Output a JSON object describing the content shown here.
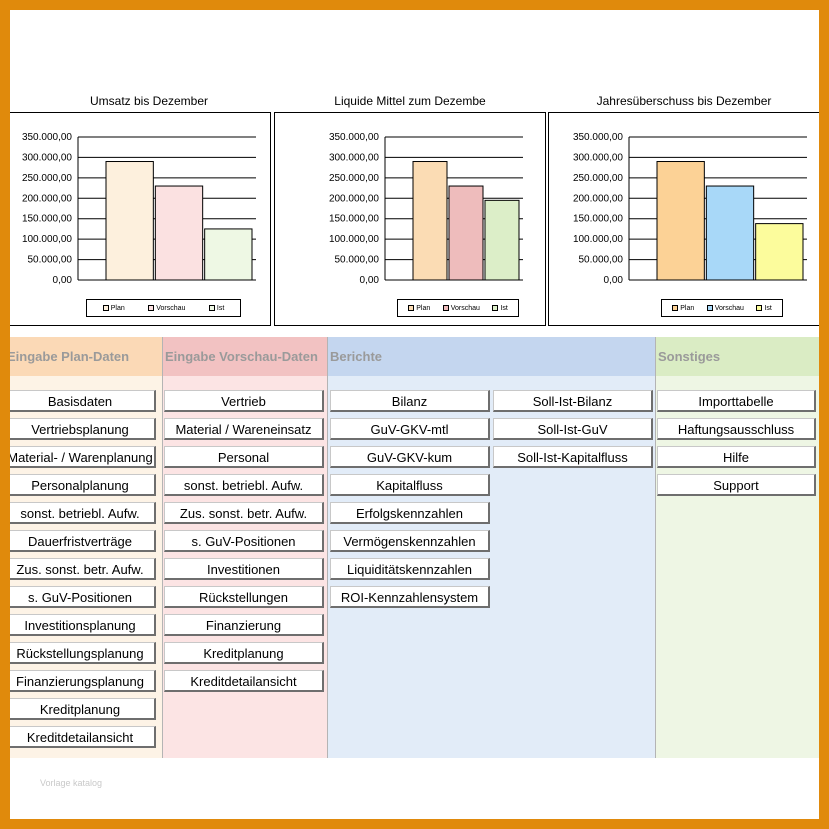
{
  "colors": {
    "plan_dashboard": "#fdf0dd",
    "vorschau_dashboard": "#fbe1e1",
    "ist_dashboard": "#eef8e4",
    "plan_liquid": "#fbdcb4",
    "vorschau_liquid": "#eebcbc",
    "ist_liquid": "#dceec8",
    "plan_jahr": "#fcd296",
    "vorschau_jahr": "#a8d8f8",
    "ist_jahr": "#fcfc9c",
    "section_plan": "#fbd9b6",
    "section_vorschau": "#f2c2c2",
    "section_berichte": "#c4d6ef",
    "section_sonstiges": "#daecc4",
    "body_plan": "#fdf3e6",
    "body_vorschau": "#fce4e4",
    "body_berichte": "#e2ecf8",
    "body_sonstiges": "#eef6e4"
  },
  "chart_data": [
    {
      "type": "bar",
      "title": "Umsatz bis Dezember",
      "categories": [
        "Plan",
        "Vorschau",
        "Ist"
      ],
      "values": [
        290000,
        230000,
        125000
      ],
      "ylim": [
        0,
        350000
      ],
      "yticks": [
        "0,00",
        "50.000,00",
        "100.000,00",
        "150.000,00",
        "200.000,00",
        "250.000,00",
        "300.000,00",
        "350.000,00"
      ],
      "legend": [
        "Plan",
        "Vorschau",
        "Ist"
      ],
      "grid": true,
      "legend_position": "bottom"
    },
    {
      "type": "bar",
      "title": "Liquide Mittel zum Dezembe",
      "categories": [
        "Plan",
        "Vorschau",
        "Ist"
      ],
      "values": [
        290000,
        230000,
        195000
      ],
      "ylim": [
        0,
        350000
      ],
      "yticks": [
        "0,00",
        "50.000,00",
        "100.000,00",
        "150.000,00",
        "200.000,00",
        "250.000,00",
        "300.000,00",
        "350.000,00"
      ],
      "legend": [
        "Plan",
        "Vorschau",
        "Ist"
      ],
      "grid": true,
      "legend_position": "bottom"
    },
    {
      "type": "bar",
      "title": "Jahresüberschuss bis Dezember",
      "categories": [
        "Plan",
        "Vorschau",
        "Ist"
      ],
      "values": [
        290000,
        230000,
        138000
      ],
      "ylim": [
        0,
        350000
      ],
      "yticks": [
        "0,00",
        "50.000,00",
        "100.000,00",
        "150.000,00",
        "200.000,00",
        "250.000,00",
        "300.000,00",
        "350.000,00"
      ],
      "legend": [
        "Plan",
        "Vorschau",
        "Ist"
      ],
      "grid": true,
      "legend_position": "bottom"
    }
  ],
  "sections": {
    "plan": {
      "title": "Eingabe Plan-Daten",
      "buttons": [
        "Basisdaten",
        "Vertriebsplanung",
        "Material- / Warenplanung",
        "Personalplanung",
        "sonst. betriebl. Aufw.",
        "Dauerfristverträge",
        "Zus. sonst. betr. Aufw.",
        "s. GuV-Positionen",
        "Investitionsplanung",
        "Rückstellungsplanung",
        "Finanzierungsplanung",
        "Kreditplanung",
        "Kreditdetailansicht"
      ]
    },
    "vorschau": {
      "title": "Eingabe Vorschau-Daten",
      "buttons": [
        "Vertrieb",
        "Material / Wareneinsatz",
        "Personal",
        "sonst. betriebl. Aufw.",
        "Zus. sonst. betr. Aufw.",
        "s. GuV-Positionen",
        "Investitionen",
        "Rückstellungen",
        "Finanzierung",
        "Kreditplanung",
        "Kreditdetailansicht"
      ]
    },
    "berichte": {
      "title": "Berichte",
      "buttons_left": [
        "Bilanz",
        "GuV-GKV-mtl",
        "GuV-GKV-kum",
        "Kapitalfluss",
        "Erfolgskennzahlen",
        "Vermögenskennzahlen",
        "Liquiditätskennzahlen",
        "ROI-Kennzahlensystem"
      ],
      "buttons_right": [
        "Soll-Ist-Bilanz",
        "Soll-Ist-GuV",
        "Soll-Ist-Kapitalfluss"
      ]
    },
    "sonstiges": {
      "title": "Sonstiges",
      "buttons": [
        "Importtabelle",
        "Haftungsausschluss",
        "Hilfe",
        "Support"
      ]
    }
  },
  "watermark": "Vorlage katalog"
}
